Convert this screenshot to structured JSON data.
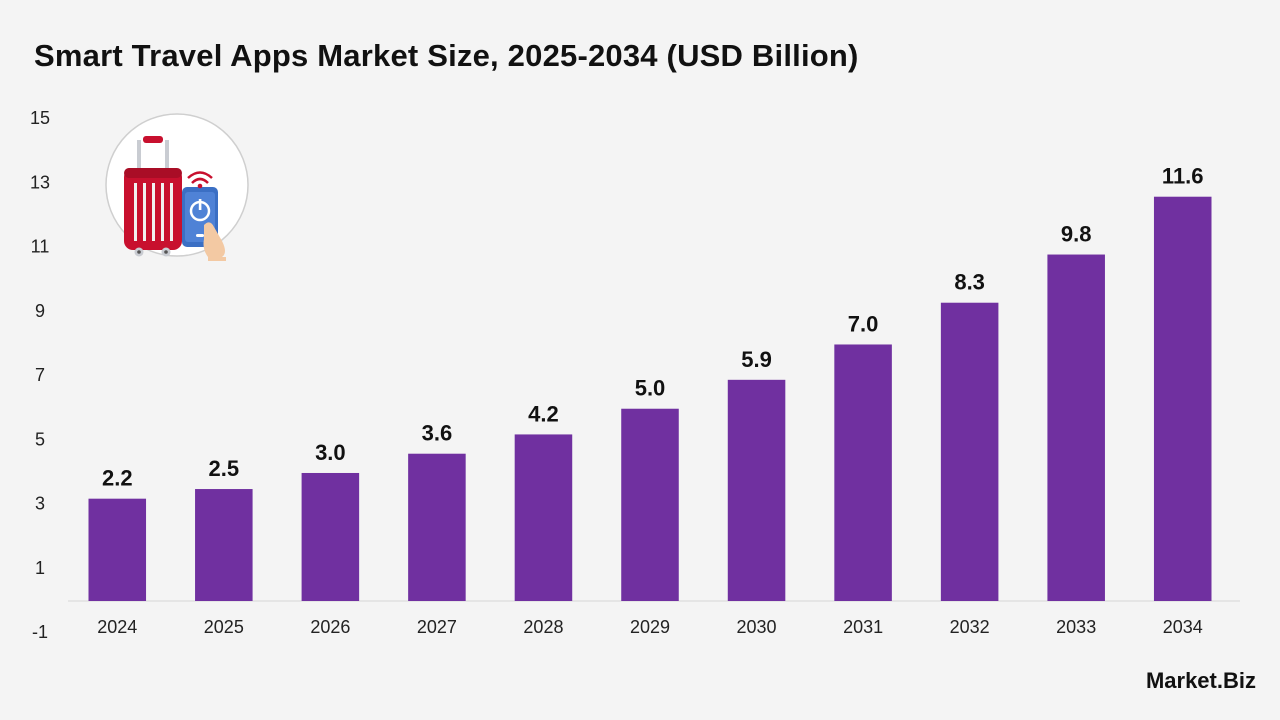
{
  "title": "Smart Travel Apps Market Size, 2025-2034 (USD Billion)",
  "brand": "Market.Biz",
  "colors": {
    "bar": "#7030a0",
    "background": "#f4f4f4",
    "text": "#111111"
  },
  "illustration": {
    "icon": "smart-luggage-icon"
  },
  "chart_data": {
    "type": "bar",
    "title": "Smart Travel Apps Market Size, 2025-2034 (USD Billion)",
    "xlabel": "",
    "ylabel": "",
    "categories": [
      "2024",
      "2025",
      "2026",
      "2027",
      "2028",
      "2029",
      "2030",
      "2031",
      "2032",
      "2033",
      "2034"
    ],
    "values": [
      2.2,
      2.5,
      3.0,
      3.6,
      4.2,
      5.0,
      5.9,
      7.0,
      8.3,
      9.8,
      11.6
    ],
    "value_labels": [
      "2.2",
      "2.5",
      "3.0",
      "3.6",
      "4.2",
      "5.0",
      "5.9",
      "7.0",
      "8.3",
      "9.8",
      "11.6"
    ],
    "yticks": [
      -1,
      1,
      3,
      5,
      7,
      9,
      11,
      13,
      15
    ],
    "ylim": [
      -1,
      15
    ],
    "grid": false,
    "legend": "none"
  }
}
